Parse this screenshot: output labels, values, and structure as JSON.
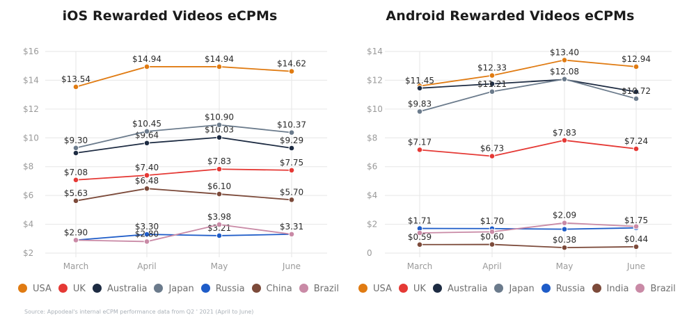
{
  "footnote": "Source: Appodeal's internal eCPM performance data from Q2 ' 2021 (April to June)",
  "chart_data": [
    {
      "type": "line",
      "title": "iOS Rewarded Videos eCPMs",
      "categories": [
        "March",
        "April",
        "May",
        "June"
      ],
      "ylim": [
        2,
        16
      ],
      "yticks": [
        "$16",
        "$14",
        "$12",
        "$10",
        "$8",
        "$6",
        "$4",
        "$2"
      ],
      "ytick_values": [
        16,
        14,
        12,
        10,
        8,
        6,
        4,
        2
      ],
      "grid": true,
      "legend_position": "bottom",
      "series": [
        {
          "name": "USA",
          "color": "#e07b12",
          "values": [
            13.54,
            14.94,
            14.94,
            14.62
          ],
          "labels": [
            "$13.54",
            "$14.94",
            "$14.94",
            "$14.62"
          ]
        },
        {
          "name": "UK",
          "color": "#e53935",
          "values": [
            7.08,
            7.4,
            7.83,
            7.75
          ],
          "labels": [
            "$7.08",
            "$7.40",
            "$7.83",
            "$7.75"
          ]
        },
        {
          "name": "Australia",
          "color": "#1d2b42",
          "values": [
            8.95,
            9.64,
            10.03,
            9.29
          ],
          "labels": [
            "",
            "$9.64",
            "$10.03",
            "$9.29"
          ]
        },
        {
          "name": "Japan",
          "color": "#6b7b8c",
          "values": [
            9.3,
            10.45,
            10.9,
            10.37
          ],
          "labels": [
            "$9.30",
            "$10.45",
            "$10.90",
            "$10.37"
          ]
        },
        {
          "name": "Russia",
          "color": "#1e5cc8",
          "values": [
            2.9,
            3.3,
            3.21,
            3.31
          ],
          "labels": [
            "",
            "$3.30",
            "$3.21",
            ""
          ]
        },
        {
          "name": "China",
          "color": "#7c4a3a",
          "values": [
            5.63,
            6.48,
            6.1,
            5.7
          ],
          "labels": [
            "$5.63",
            "$6.48",
            "$6.10",
            "$5.70"
          ]
        },
        {
          "name": "Brazil",
          "color": "#c98aa6",
          "values": [
            2.9,
            2.8,
            3.98,
            3.31
          ],
          "labels": [
            "$2.90",
            "$2.80",
            "$3.98",
            "$3.31"
          ]
        }
      ]
    },
    {
      "type": "line",
      "title": "Android Rewarded Videos eCPMs",
      "categories": [
        "March",
        "April",
        "May",
        "June"
      ],
      "ylim": [
        0,
        14
      ],
      "yticks": [
        "$14",
        "$12",
        "$10",
        "$8",
        "$6",
        "$4",
        "$2",
        "0"
      ],
      "ytick_values": [
        14,
        12,
        10,
        8,
        6,
        4,
        2,
        0
      ],
      "grid": true,
      "legend_position": "bottom",
      "series": [
        {
          "name": "USA",
          "color": "#e07b12",
          "values": [
            11.6,
            12.33,
            13.4,
            12.94
          ],
          "labels": [
            "",
            "$12.33",
            "$13.40",
            "$12.94"
          ]
        },
        {
          "name": "UK",
          "color": "#e53935",
          "values": [
            7.17,
            6.73,
            7.83,
            7.24
          ],
          "labels": [
            "$7.17",
            "$6.73",
            "$7.83",
            "$7.24"
          ]
        },
        {
          "name": "Australia",
          "color": "#1d2b42",
          "values": [
            11.45,
            11.75,
            12.05,
            11.2
          ],
          "labels": [
            "$11.45",
            "",
            "",
            ""
          ]
        },
        {
          "name": "Japan",
          "color": "#6b7b8c",
          "values": [
            9.83,
            11.21,
            12.08,
            10.72
          ],
          "labels": [
            "$9.83",
            "$11.21",
            "$12.08",
            "$10.72"
          ]
        },
        {
          "name": "Russia",
          "color": "#1e5cc8",
          "values": [
            1.71,
            1.7,
            1.66,
            1.75
          ],
          "labels": [
            "$1.71",
            "$1.70",
            "",
            "$1.75"
          ]
        },
        {
          "name": "India",
          "color": "#7c4a3a",
          "values": [
            0.59,
            0.6,
            0.38,
            0.44
          ],
          "labels": [
            "$0.59",
            "$0.60",
            "$0.38",
            "$0.44"
          ]
        },
        {
          "name": "Brazil",
          "color": "#c98aa6",
          "values": [
            1.4,
            1.48,
            2.09,
            1.85
          ],
          "labels": [
            "",
            "",
            "$2.09",
            ""
          ]
        }
      ]
    }
  ]
}
